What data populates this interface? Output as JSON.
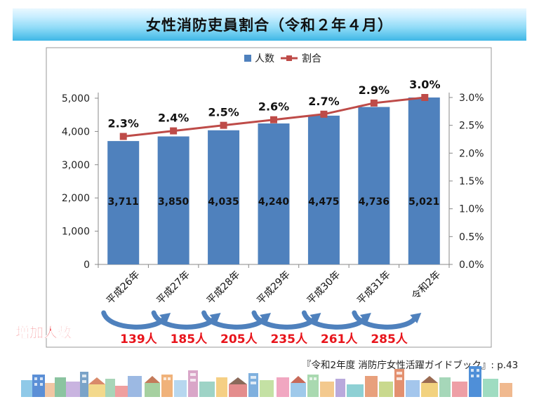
{
  "page": {
    "title": "女性消防吏員割合（令和２年４月）",
    "source": "『令和2年度 消防庁女性活躍ガイドブック』: p.43"
  },
  "chart_data": {
    "type": "bar",
    "categories": [
      "平成26年",
      "平成27年",
      "平成28年",
      "平成29年",
      "平成30年",
      "平成31年",
      "令和2年"
    ],
    "series": [
      {
        "name": "人数",
        "type": "bar",
        "axis": "left",
        "values": [
          3711,
          3850,
          4035,
          4240,
          4475,
          4736,
          5021
        ],
        "labels": [
          "3,711",
          "3,850",
          "4,035",
          "4,240",
          "4,475",
          "4,736",
          "5,021"
        ]
      },
      {
        "name": "割合",
        "type": "line",
        "axis": "right",
        "values": [
          2.3,
          2.4,
          2.5,
          2.6,
          2.7,
          2.9,
          3.0
        ],
        "labels": [
          "2.3%",
          "2.4%",
          "2.5%",
          "2.6%",
          "2.7%",
          "2.9%",
          "3.0%"
        ]
      }
    ],
    "ylim_left": [
      0,
      5000
    ],
    "yticks_left": [
      "0",
      "1,000",
      "2,000",
      "3,000",
      "4,000",
      "5,000"
    ],
    "ylim_right": [
      0,
      3.0
    ],
    "yticks_right": [
      "0.0%",
      "0.5%",
      "1.0%",
      "1.5%",
      "2.0%",
      "2.5%",
      "3.0%"
    ],
    "legend_position": "top-right",
    "grid": false,
    "colors": {
      "bar": "#4f81bd",
      "line": "#be4b48",
      "increase_text": "#e8141b",
      "increase_arrow": "#4f81bd"
    },
    "increase": {
      "label": "増加人数",
      "values": [
        "139人",
        "185人",
        "205人",
        "235人",
        "261人",
        "285人"
      ]
    }
  }
}
